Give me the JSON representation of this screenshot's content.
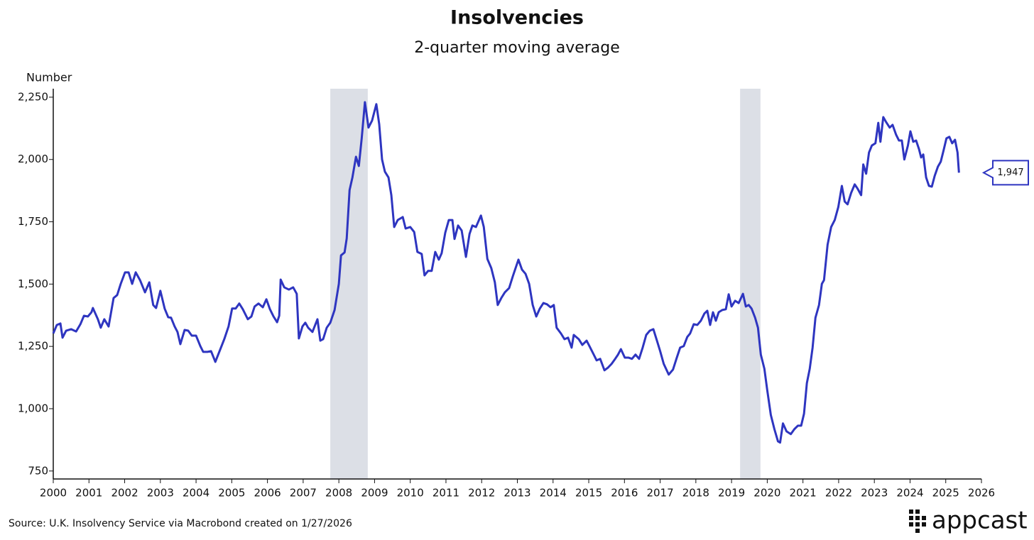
{
  "chart_data": {
    "type": "line",
    "title": "Insolvencies",
    "subtitle": "2-quarter moving average",
    "y_label": "Number",
    "source": "Source: U.K. Insolvency Service via Macrobond created on 1/27/2026",
    "logo": "appcast",
    "xlim": [
      2000,
      2026
    ],
    "xticks": [
      2000,
      2001,
      2002,
      2003,
      2004,
      2005,
      2006,
      2007,
      2008,
      2009,
      2010,
      2011,
      2012,
      2013,
      2014,
      2015,
      2016,
      2017,
      2018,
      2019,
      2020,
      2021,
      2022,
      2023,
      2024,
      2025,
      2026
    ],
    "ylim": [
      718,
      2284
    ],
    "yticks": [
      750,
      {
        "value": 1000,
        "label": "1,000"
      },
      {
        "value": 1250,
        "label": "1,250"
      },
      {
        "value": 1500,
        "label": "1,500"
      },
      {
        "value": 1750,
        "label": "1,750"
      },
      {
        "value": 2000,
        "label": "2,000"
      },
      {
        "value": 2250,
        "label": "2,250"
      }
    ],
    "shaded_periods": [
      [
        2007.76,
        2008.81
      ],
      [
        2019.24,
        2019.81
      ]
    ],
    "shade_color": "#dcdfe6",
    "annotations": [
      {
        "x": 2025.37,
        "value": 1947,
        "label": "1,947"
      }
    ],
    "series": [
      {
        "name": "Insolvencies",
        "color": "#2e35c0",
        "x": [
          2000.0,
          2000.1,
          2000.2,
          2000.26,
          2000.36,
          2000.5,
          2000.64,
          2000.76,
          2000.86,
          2000.97,
          2001.07,
          2001.11,
          2001.25,
          2001.33,
          2001.43,
          2001.55,
          2001.69,
          2001.79,
          2001.89,
          2002.01,
          2002.11,
          2002.21,
          2002.31,
          2002.43,
          2002.57,
          2002.69,
          2002.8,
          2002.88,
          2003.0,
          2003.12,
          2003.22,
          2003.3,
          2003.4,
          2003.48,
          2003.56,
          2003.68,
          2003.78,
          2003.88,
          2004.0,
          2004.12,
          2004.2,
          2004.32,
          2004.42,
          2004.54,
          2004.68,
          2004.79,
          2004.91,
          2005.01,
          2005.11,
          2005.21,
          2005.31,
          2005.45,
          2005.55,
          2005.64,
          2005.75,
          2005.87,
          2005.97,
          2006.07,
          2006.17,
          2006.27,
          2006.33,
          2006.37,
          2006.47,
          2006.6,
          2006.72,
          2006.82,
          2006.88,
          2006.98,
          2007.06,
          2007.14,
          2007.26,
          2007.4,
          2007.48,
          2007.56,
          2007.66,
          2007.76,
          2007.88,
          2008.0,
          2008.06,
          2008.16,
          2008.22,
          2008.3,
          2008.38,
          2008.48,
          2008.56,
          2008.64,
          2008.73,
          2008.83,
          2008.93,
          2009.05,
          2009.13,
          2009.21,
          2009.29,
          2009.39,
          2009.47,
          2009.55,
          2009.65,
          2009.79,
          2009.87,
          2010.0,
          2010.11,
          2010.2,
          2010.32,
          2010.4,
          2010.5,
          2010.6,
          2010.7,
          2010.8,
          2010.88,
          2010.98,
          2011.08,
          2011.18,
          2011.24,
          2011.34,
          2011.44,
          2011.56,
          2011.66,
          2011.74,
          2011.84,
          2011.98,
          2012.06,
          2012.16,
          2012.27,
          2012.37,
          2012.45,
          2012.55,
          2012.65,
          2012.77,
          2012.87,
          2013.03,
          2013.13,
          2013.23,
          2013.33,
          2013.43,
          2013.53,
          2013.63,
          2013.73,
          2013.83,
          2013.93,
          2014.02,
          2014.1,
          2014.22,
          2014.32,
          2014.42,
          2014.52,
          2014.58,
          2014.72,
          2014.82,
          2014.94,
          2015.02,
          2015.14,
          2015.22,
          2015.32,
          2015.44,
          2015.54,
          2015.64,
          2015.74,
          2015.82,
          2015.9,
          2016.01,
          2016.11,
          2016.21,
          2016.31,
          2016.41,
          2016.51,
          2016.61,
          2016.71,
          2016.81,
          2016.91,
          2017.0,
          2017.1,
          2017.24,
          2017.36,
          2017.46,
          2017.56,
          2017.66,
          2017.76,
          2017.84,
          2017.94,
          2018.04,
          2018.14,
          2018.24,
          2018.32,
          2018.4,
          2018.48,
          2018.56,
          2018.64,
          2018.74,
          2018.84,
          2018.92,
          2019.0,
          2019.1,
          2019.2,
          2019.32,
          2019.4,
          2019.48,
          2019.56,
          2019.66,
          2019.74,
          2019.82,
          2019.92,
          2020.0,
          2020.1,
          2020.2,
          2020.3,
          2020.36,
          2020.44,
          2020.54,
          2020.66,
          2020.76,
          2020.86,
          2020.95,
          2021.03,
          2021.11,
          2021.19,
          2021.27,
          2021.35,
          2021.45,
          2021.53,
          2021.59,
          2021.69,
          2021.79,
          2021.89,
          2021.99,
          2022.09,
          2022.17,
          2022.25,
          2022.35,
          2022.45,
          2022.53,
          2022.63,
          2022.69,
          2022.77,
          2022.85,
          2022.93,
          2023.03,
          2023.11,
          2023.17,
          2023.25,
          2023.33,
          2023.43,
          2023.51,
          2023.61,
          2023.69,
          2023.77,
          2023.84,
          2023.94,
          2024.01,
          2024.09,
          2024.17,
          2024.25,
          2024.31,
          2024.37,
          2024.45,
          2024.53,
          2024.61,
          2024.69,
          2024.78,
          2024.86,
          2024.94,
          2025.02,
          2025.1,
          2025.18,
          2025.26,
          2025.33,
          2025.37
        ],
        "values": [
          1302,
          1336,
          1342,
          1285,
          1313,
          1319,
          1310,
          1339,
          1373,
          1370,
          1387,
          1404,
          1359,
          1325,
          1359,
          1330,
          1444,
          1456,
          1501,
          1547,
          1547,
          1501,
          1547,
          1516,
          1467,
          1507,
          1416,
          1404,
          1473,
          1402,
          1367,
          1365,
          1330,
          1308,
          1259,
          1316,
          1313,
          1293,
          1293,
          1251,
          1228,
          1228,
          1231,
          1188,
          1239,
          1279,
          1330,
          1402,
          1402,
          1422,
          1399,
          1359,
          1370,
          1410,
          1422,
          1407,
          1439,
          1399,
          1370,
          1347,
          1373,
          1518,
          1487,
          1478,
          1487,
          1461,
          1282,
          1330,
          1345,
          1325,
          1308,
          1359,
          1273,
          1279,
          1325,
          1345,
          1396,
          1501,
          1615,
          1627,
          1683,
          1877,
          1928,
          2011,
          1974,
          2085,
          2230,
          2128,
          2156,
          2222,
          2142,
          2000,
          1951,
          1928,
          1857,
          1729,
          1757,
          1769,
          1723,
          1729,
          1709,
          1629,
          1621,
          1535,
          1553,
          1553,
          1629,
          1598,
          1624,
          1706,
          1757,
          1757,
          1681,
          1735,
          1715,
          1609,
          1701,
          1735,
          1729,
          1775,
          1729,
          1601,
          1564,
          1507,
          1416,
          1444,
          1467,
          1484,
          1530,
          1598,
          1558,
          1541,
          1501,
          1416,
          1370,
          1402,
          1424,
          1419,
          1407,
          1416,
          1325,
          1302,
          1279,
          1285,
          1245,
          1296,
          1279,
          1256,
          1273,
          1251,
          1217,
          1194,
          1200,
          1154,
          1165,
          1180,
          1200,
          1217,
          1239,
          1205,
          1205,
          1200,
          1217,
          1200,
          1245,
          1296,
          1313,
          1319,
          1273,
          1231,
          1180,
          1137,
          1157,
          1202,
          1245,
          1251,
          1288,
          1302,
          1339,
          1336,
          1353,
          1382,
          1393,
          1336,
          1387,
          1353,
          1387,
          1396,
          1399,
          1459,
          1410,
          1433,
          1424,
          1461,
          1410,
          1416,
          1402,
          1365,
          1325,
          1217,
          1160,
          1074,
          975,
          918,
          869,
          864,
          941,
          909,
          898,
          918,
          932,
          932,
          980,
          1103,
          1160,
          1245,
          1365,
          1416,
          1501,
          1516,
          1658,
          1729,
          1757,
          1809,
          1894,
          1831,
          1820,
          1866,
          1900,
          1883,
          1857,
          1980,
          1943,
          2028,
          2056,
          2065,
          2147,
          2071,
          2170,
          2150,
          2128,
          2139,
          2099,
          2076,
          2076,
          2000,
          2056,
          2113,
          2071,
          2076,
          2042,
          2008,
          2020,
          1928,
          1894,
          1891,
          1934,
          1971,
          1991,
          2037,
          2085,
          2091,
          2065,
          2079,
          2028,
          1947
        ]
      }
    ]
  }
}
